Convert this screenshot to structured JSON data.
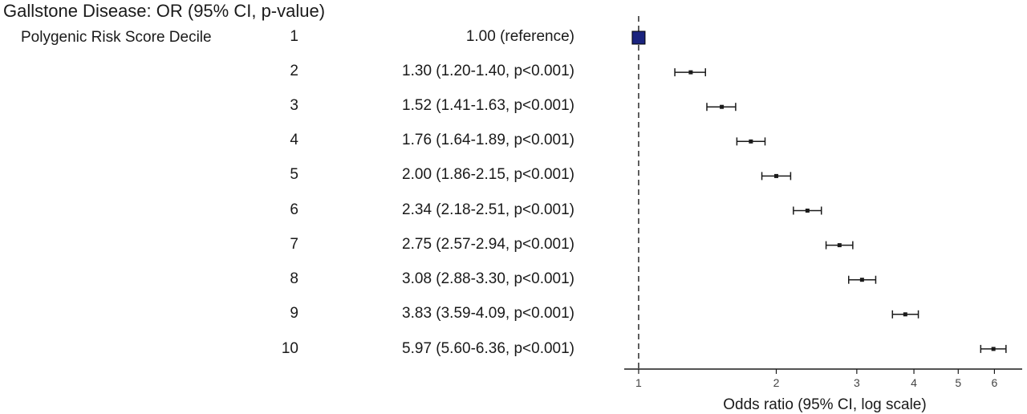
{
  "title": "Gallstone Disease: OR (95% CI, p-value)",
  "variable_label": "Polygenic Risk Score Decile",
  "rows": [
    {
      "decile": "1",
      "estimate": "1.00 (reference)"
    },
    {
      "decile": "2",
      "estimate": "1.30 (1.20-1.40, p<0.001)"
    },
    {
      "decile": "3",
      "estimate": "1.52 (1.41-1.63, p<0.001)"
    },
    {
      "decile": "4",
      "estimate": "1.76 (1.64-1.89, p<0.001)"
    },
    {
      "decile": "5",
      "estimate": "2.00 (1.86-2.15, p<0.001)"
    },
    {
      "decile": "6",
      "estimate": "2.34 (2.18-2.51, p<0.001)"
    },
    {
      "decile": "7",
      "estimate": "2.75 (2.57-2.94, p<0.001)"
    },
    {
      "decile": "8",
      "estimate": "3.08 (2.88-3.30, p<0.001)"
    },
    {
      "decile": "9",
      "estimate": "3.83 (3.59-4.09, p<0.001)"
    },
    {
      "decile": "10",
      "estimate": "5.97 (5.60-6.36, p<0.001)"
    }
  ],
  "chart_data": {
    "type": "scatter",
    "subtype": "forest-plot",
    "title": "Gallstone Disease: OR (95% CI, p-value)",
    "xlabel": "Odds ratio (95% CI, log scale)",
    "x_scale": "log",
    "x_ticks": [
      1,
      2,
      3,
      4,
      5,
      6
    ],
    "xlim": [
      0.93,
      6.9
    ],
    "reference_line": 1,
    "grid": false,
    "categories": [
      "1",
      "2",
      "3",
      "4",
      "5",
      "6",
      "7",
      "8",
      "9",
      "10"
    ],
    "or": [
      1.0,
      1.3,
      1.52,
      1.76,
      2.0,
      2.34,
      2.75,
      3.08,
      3.83,
      5.97
    ],
    "ci_low": [
      null,
      1.2,
      1.41,
      1.64,
      1.86,
      2.18,
      2.57,
      2.88,
      3.59,
      5.6
    ],
    "ci_high": [
      null,
      1.4,
      1.63,
      1.89,
      2.15,
      2.51,
      2.94,
      3.3,
      4.09,
      6.36
    ],
    "reference_category": "1",
    "colors": {
      "reference_marker": "#1a237e",
      "marker": "#1a1a1a",
      "error_bar": "#1a1a1a",
      "axis": "#1a1a1a"
    }
  }
}
